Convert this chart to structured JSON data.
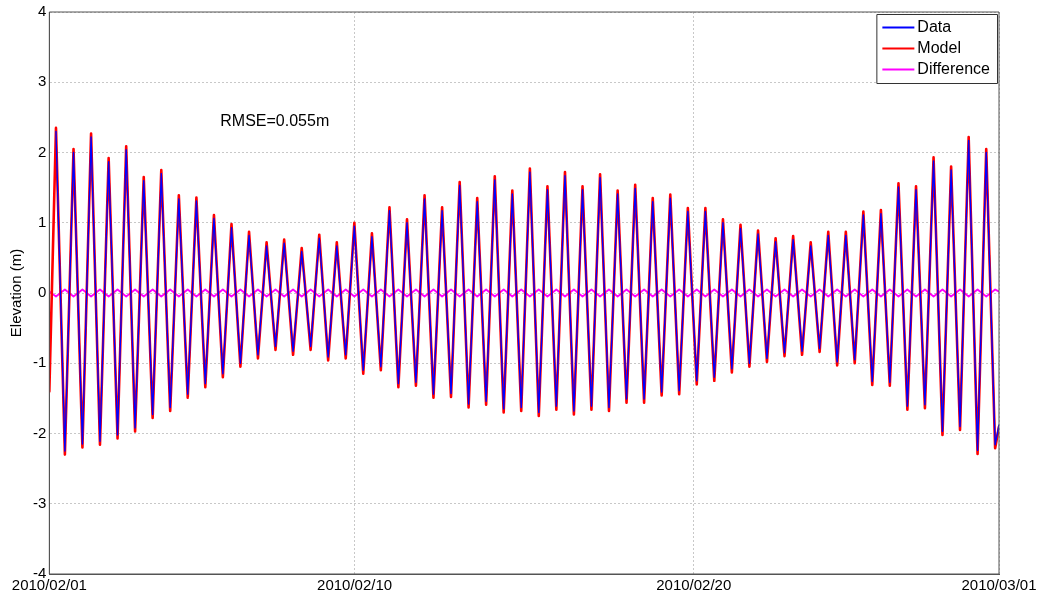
{
  "chart_data": {
    "type": "line",
    "ylabel": "Elevation (m)",
    "annotations": [
      "RMSE=0.055m"
    ],
    "x": [
      "2010-02-01T00:00",
      "2010-02-01T04:42",
      "2010-02-01T11:00",
      "2010-02-01T17:07",
      "2010-02-01T23:25",
      "2010-02-02T05:32",
      "2010-02-02T11:50",
      "2010-02-02T17:58",
      "2010-02-03T00:16",
      "2010-02-03T06:23",
      "2010-02-03T12:41",
      "2010-02-03T18:48",
      "2010-02-04T01:06",
      "2010-02-04T07:13",
      "2010-02-04T13:31",
      "2010-02-04T19:38",
      "2010-02-05T01:56",
      "2010-02-05T08:04",
      "2010-02-05T14:22",
      "2010-02-05T20:29",
      "2010-02-06T02:47",
      "2010-02-06T08:54",
      "2010-02-06T15:12",
      "2010-02-06T21:19",
      "2010-02-07T03:37",
      "2010-02-07T09:44",
      "2010-02-07T16:02",
      "2010-02-07T22:10",
      "2010-02-08T04:28",
      "2010-02-08T10:35",
      "2010-02-08T16:53",
      "2010-02-08T23:00",
      "2010-02-09T05:18",
      "2010-02-09T11:25",
      "2010-02-09T17:43",
      "2010-02-09T23:50",
      "2010-02-10T06:08",
      "2010-02-10T12:16",
      "2010-02-10T18:34",
      "2010-02-11T00:41",
      "2010-02-11T06:59",
      "2010-02-11T13:06",
      "2010-02-11T19:24",
      "2010-02-12T01:31",
      "2010-02-12T07:49",
      "2010-02-12T13:56",
      "2010-02-12T20:14",
      "2010-02-13T02:22",
      "2010-02-13T08:40",
      "2010-02-13T14:47",
      "2010-02-13T21:05",
      "2010-02-14T03:12",
      "2010-02-14T09:30",
      "2010-02-14T15:37",
      "2010-02-14T21:55",
      "2010-02-15T04:02",
      "2010-02-15T10:20",
      "2010-02-15T16:28",
      "2010-02-15T22:46",
      "2010-02-16T04:53",
      "2010-02-16T11:11",
      "2010-02-16T17:18",
      "2010-02-16T23:36",
      "2010-02-17T05:43",
      "2010-02-17T12:01",
      "2010-02-17T18:08",
      "2010-02-18T00:26",
      "2010-02-18T06:34",
      "2010-02-18T12:52",
      "2010-02-18T18:59",
      "2010-02-19T01:17",
      "2010-02-19T07:24",
      "2010-02-19T13:42",
      "2010-02-19T19:49",
      "2010-02-20T02:07",
      "2010-02-20T08:14",
      "2010-02-20T14:32",
      "2010-02-20T20:40",
      "2010-02-21T02:58",
      "2010-02-21T09:05",
      "2010-02-21T15:23",
      "2010-02-21T21:30",
      "2010-02-22T03:48",
      "2010-02-22T09:55",
      "2010-02-22T16:13",
      "2010-02-22T22:20",
      "2010-02-23T04:38",
      "2010-02-23T10:46",
      "2010-02-23T17:04",
      "2010-02-23T23:11",
      "2010-02-24T05:29",
      "2010-02-24T11:36",
      "2010-02-24T17:54",
      "2010-02-25T00:01",
      "2010-02-25T06:19",
      "2010-02-25T12:26",
      "2010-02-25T18:44",
      "2010-02-26T00:52",
      "2010-02-26T07:10",
      "2010-02-26T13:17",
      "2010-02-26T19:35",
      "2010-02-27T01:42",
      "2010-02-27T08:00",
      "2010-02-27T14:07",
      "2010-02-27T20:25",
      "2010-02-28T02:32",
      "2010-02-28T08:50",
      "2010-02-28T14:58",
      "2010-02-28T21:16",
      "2010-03-01T00:00"
    ],
    "series": [
      {
        "name": "Data",
        "color": "#0000ff",
        "values": [
          null,
          2.3,
          -2.25,
          2.0,
          -2.15,
          2.22,
          -2.11,
          1.87,
          -2.02,
          2.04,
          -1.92,
          1.6,
          -1.73,
          1.7,
          -1.63,
          1.34,
          -1.44,
          1.31,
          -1.29,
          1.06,
          -1.15,
          0.93,
          -1.0,
          0.82,
          -0.88,
          0.67,
          -0.76,
          0.71,
          -0.83,
          0.59,
          -0.76,
          0.78,
          -0.91,
          0.67,
          -0.88,
          0.95,
          -1.1,
          0.8,
          -1.05,
          1.17,
          -1.29,
          1.0,
          -1.27,
          1.34,
          -1.44,
          1.17,
          -1.43,
          1.53,
          -1.58,
          1.3,
          -1.54,
          1.61,
          -1.65,
          1.41,
          -1.63,
          1.72,
          -1.7,
          1.47,
          -1.61,
          1.67,
          -1.68,
          1.47,
          -1.61,
          1.64,
          -1.63,
          1.41,
          -1.51,
          1.49,
          -1.51,
          1.3,
          -1.41,
          1.35,
          -1.39,
          1.16,
          -1.25,
          1.16,
          -1.2,
          1.0,
          -1.08,
          0.92,
          -1.0,
          0.84,
          -0.93,
          0.73,
          -0.85,
          0.76,
          -0.83,
          0.67,
          -0.79,
          0.82,
          -0.98,
          0.82,
          -0.95,
          1.11,
          -1.26,
          1.13,
          -1.27,
          1.51,
          -1.61,
          1.47,
          -1.59,
          1.88,
          -1.97,
          1.75,
          -1.9,
          2.17,
          -2.24,
          2.0,
          -2.16,
          -1.88
        ]
      },
      {
        "name": "Model",
        "color": "#ff0000",
        "values": [
          -1.4,
          2.35,
          -2.3,
          2.05,
          -2.2,
          2.27,
          -2.16,
          1.92,
          -2.07,
          2.09,
          -1.97,
          1.65,
          -1.78,
          1.75,
          -1.68,
          1.39,
          -1.49,
          1.36,
          -1.34,
          1.11,
          -1.2,
          0.98,
          -1.05,
          0.87,
          -0.93,
          0.72,
          -0.81,
          0.76,
          -0.88,
          0.64,
          -0.81,
          0.83,
          -0.96,
          0.72,
          -0.93,
          1.0,
          -1.15,
          0.85,
          -1.1,
          1.22,
          -1.34,
          1.05,
          -1.32,
          1.39,
          -1.49,
          1.22,
          -1.48,
          1.58,
          -1.63,
          1.35,
          -1.59,
          1.66,
          -1.7,
          1.46,
          -1.68,
          1.77,
          -1.75,
          1.52,
          -1.66,
          1.72,
          -1.73,
          1.52,
          -1.66,
          1.69,
          -1.68,
          1.46,
          -1.56,
          1.54,
          -1.56,
          1.35,
          -1.46,
          1.4,
          -1.44,
          1.21,
          -1.3,
          1.21,
          -1.25,
          1.05,
          -1.13,
          0.97,
          -1.05,
          0.89,
          -0.98,
          0.78,
          -0.9,
          0.81,
          -0.88,
          0.72,
          -0.84,
          0.87,
          -1.03,
          0.87,
          -1.0,
          1.16,
          -1.31,
          1.18,
          -1.32,
          1.56,
          -1.66,
          1.52,
          -1.64,
          1.93,
          -2.02,
          1.8,
          -1.95,
          2.22,
          -2.29,
          2.05,
          -2.21,
          -1.9
        ]
      },
      {
        "name": "Difference",
        "color": "#ff00ff",
        "values": [
          0.02,
          -0.05,
          0.05,
          -0.05,
          0.05,
          -0.05,
          0.05,
          -0.05,
          0.05,
          -0.05,
          0.05,
          -0.05,
          0.05,
          -0.05,
          0.05,
          -0.05,
          0.05,
          -0.05,
          0.05,
          -0.05,
          0.05,
          -0.05,
          0.05,
          -0.05,
          0.05,
          -0.05,
          0.05,
          -0.05,
          0.05,
          -0.05,
          0.05,
          -0.05,
          0.05,
          -0.05,
          0.05,
          -0.05,
          0.05,
          -0.05,
          0.05,
          -0.05,
          0.05,
          -0.05,
          0.05,
          -0.05,
          0.05,
          -0.05,
          0.05,
          -0.05,
          0.05,
          -0.05,
          0.05,
          -0.05,
          0.05,
          -0.05,
          0.05,
          -0.05,
          0.05,
          -0.05,
          0.05,
          -0.05,
          0.05,
          -0.05,
          0.05,
          -0.05,
          0.05,
          -0.05,
          0.05,
          -0.05,
          0.05,
          -0.05,
          0.05,
          -0.05,
          0.05,
          -0.05,
          0.05,
          -0.05,
          0.05,
          -0.05,
          0.05,
          -0.05,
          0.05,
          -0.05,
          0.05,
          -0.05,
          0.05,
          -0.05,
          0.05,
          -0.05,
          0.05,
          -0.05,
          0.05,
          -0.05,
          0.05,
          -0.05,
          0.05,
          -0.05,
          0.05,
          -0.05,
          0.05,
          -0.05,
          0.05,
          -0.05,
          0.05,
          -0.05,
          0.05,
          -0.05,
          0.05,
          -0.05,
          0.05,
          0.02
        ]
      }
    ],
    "xlim": [
      "2010-02-01",
      "2010-03-01"
    ],
    "xticks": [
      {
        "value": "2010-02-01",
        "label": "2010/02/01"
      },
      {
        "value": "2010-02-10",
        "label": "2010/02/10"
      },
      {
        "value": "2010-02-20",
        "label": "2010/02/20"
      },
      {
        "value": "2010-03-01",
        "label": "2010/03/01"
      }
    ],
    "ylim": [
      -4,
      4
    ],
    "yticks": [
      -4,
      -3,
      -2,
      -1,
      0,
      1,
      2,
      3,
      4
    ],
    "grid": true,
    "legend": "top right",
    "line_style": "solid"
  }
}
